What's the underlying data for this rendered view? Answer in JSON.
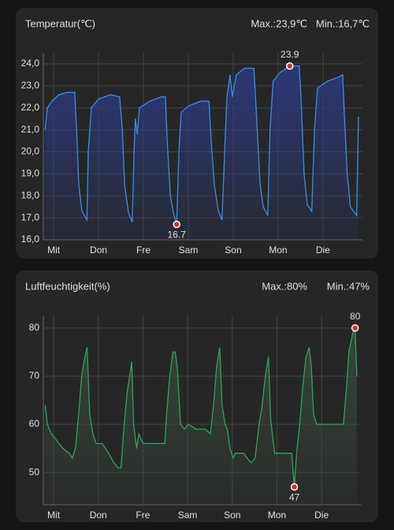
{
  "chart_data": [
    {
      "type": "line",
      "title": "Temperatur(℃)",
      "max_label": "Max.:23,9℃",
      "min_label": "Min.:16,7℃",
      "x": [
        -0.19,
        -0.14,
        -0.04,
        0.12,
        0.3,
        0.47,
        0.51,
        0.56,
        0.63,
        0.74,
        0.77,
        0.84,
        1.0,
        1.26,
        1.47,
        1.53,
        1.58,
        1.67,
        1.75,
        1.79,
        1.82,
        1.86,
        1.91,
        2.14,
        2.4,
        2.49,
        2.53,
        2.6,
        2.67,
        2.74,
        2.79,
        2.84,
        3.02,
        3.28,
        3.46,
        3.51,
        3.58,
        3.67,
        3.75,
        3.81,
        3.86,
        3.93,
        3.98,
        4.07,
        4.25,
        4.46,
        4.51,
        4.6,
        4.67,
        4.77,
        4.82,
        4.89,
        5.04,
        5.26,
        5.47,
        5.51,
        5.58,
        5.65,
        5.75,
        5.81,
        5.88,
        6.09,
        6.35,
        6.44,
        6.47,
        6.54,
        6.61,
        6.75,
        6.79
      ],
      "series": [
        {
          "color": "#3a8ee6",
          "fill": "#2c3a80",
          "values": [
            21.0,
            22.0,
            22.3,
            22.6,
            22.7,
            22.7,
            21.0,
            18.5,
            17.3,
            16.9,
            20.0,
            22.0,
            22.4,
            22.6,
            22.5,
            21.0,
            18.5,
            17.2,
            16.8,
            20.0,
            21.5,
            20.8,
            22.0,
            22.3,
            22.5,
            22.5,
            20.5,
            18.0,
            17.2,
            16.7,
            20.0,
            21.8,
            22.1,
            22.3,
            22.3,
            20.5,
            18.5,
            17.3,
            16.9,
            20.0,
            22.5,
            23.5,
            22.5,
            23.5,
            23.8,
            23.8,
            22.0,
            18.5,
            17.5,
            17.1,
            21.0,
            23.2,
            23.6,
            23.9,
            23.9,
            22.5,
            19.0,
            17.6,
            17.3,
            21.0,
            22.9,
            23.2,
            23.4,
            23.5,
            22.0,
            19.0,
            17.5,
            17.1,
            21.6
          ]
        }
      ],
      "xlim": [
        -0.23,
        6.88
      ],
      "xticks": [
        {
          "value": 0,
          "label": "Mit"
        },
        {
          "value": 1,
          "label": "Don"
        },
        {
          "value": 2,
          "label": "Fre"
        },
        {
          "value": 3,
          "label": "Sam"
        },
        {
          "value": 4,
          "label": "Son"
        },
        {
          "value": 5,
          "label": "Mon"
        },
        {
          "value": 6,
          "label": "Die"
        }
      ],
      "ylim": [
        16,
        24.5
      ],
      "yticks": [
        {
          "value": 16,
          "label": "16,0"
        },
        {
          "value": 17,
          "label": "17,0"
        },
        {
          "value": 18,
          "label": "18,0"
        },
        {
          "value": 19,
          "label": "19,0"
        },
        {
          "value": 20,
          "label": "20,0"
        },
        {
          "value": 21,
          "label": "21,0"
        },
        {
          "value": 22,
          "label": "22,0"
        },
        {
          "value": 23,
          "label": "23,0"
        },
        {
          "value": 24,
          "label": "24,0"
        }
      ],
      "grid": true,
      "annotations": [
        {
          "x": 5.26,
          "value": 23.9
        },
        {
          "x": 2.74,
          "value": 16.7
        }
      ]
    },
    {
      "type": "line",
      "title": "Luftfeuchtigkeit(%)",
      "max_label": "Max.:80%",
      "min_label": "Min.:47%",
      "x": [
        -0.19,
        -0.14,
        -0.05,
        0.04,
        0.12,
        0.21,
        0.35,
        0.42,
        0.49,
        0.56,
        0.63,
        0.7,
        0.75,
        0.81,
        0.88,
        0.95,
        1.09,
        1.23,
        1.35,
        1.44,
        1.51,
        1.58,
        1.65,
        1.72,
        1.75,
        1.79,
        1.86,
        1.91,
        2.0,
        2.32,
        2.49,
        2.53,
        2.6,
        2.67,
        2.72,
        2.77,
        2.84,
        2.93,
        3.02,
        3.19,
        3.4,
        3.51,
        3.58,
        3.65,
        3.72,
        3.77,
        3.84,
        3.89,
        3.95,
        4.02,
        4.07,
        4.25,
        4.42,
        4.51,
        4.6,
        4.67,
        4.74,
        4.81,
        4.86,
        4.95,
        5.05,
        5.21,
        5.33,
        5.39,
        5.44,
        5.51,
        5.58,
        5.65,
        5.72,
        5.77,
        5.82,
        5.89,
        6.18,
        6.49,
        6.56,
        6.61,
        6.7,
        6.75,
        6.79
      ],
      "series": [
        {
          "color": "#2fa35a",
          "fill": "#3a4a40",
          "values": [
            64,
            60,
            58,
            57,
            56,
            55,
            54,
            53,
            55,
            62,
            70,
            74,
            76,
            62,
            58,
            56,
            56,
            54,
            52,
            51,
            51,
            60,
            67,
            71,
            73,
            60,
            55,
            58,
            56,
            56,
            56,
            62,
            70,
            75,
            75,
            72,
            60,
            59,
            60,
            59,
            59,
            58,
            64,
            72,
            76,
            64,
            60,
            59,
            55,
            53,
            54,
            54,
            52,
            53,
            60,
            64,
            70,
            74,
            61,
            54,
            54,
            54,
            54,
            47,
            54,
            60,
            68,
            74,
            76,
            72,
            62,
            60,
            60,
            60,
            68,
            75,
            79,
            80,
            70
          ]
        }
      ],
      "xlim": [
        -0.23,
        6.88
      ],
      "xticks": [
        {
          "value": 0,
          "label": "Mit"
        },
        {
          "value": 1,
          "label": "Don"
        },
        {
          "value": 2,
          "label": "Fre"
        },
        {
          "value": 3,
          "label": "Sam"
        },
        {
          "value": 4,
          "label": "Son"
        },
        {
          "value": 5,
          "label": "Mon"
        },
        {
          "value": 6,
          "label": "Die"
        }
      ],
      "ylim": [
        43.3,
        82.6
      ],
      "yticks": [
        50,
        60,
        70,
        80
      ],
      "grid": true,
      "annotations": [
        {
          "x": 6.75,
          "value": 80
        },
        {
          "x": 5.39,
          "value": 47
        }
      ]
    }
  ]
}
